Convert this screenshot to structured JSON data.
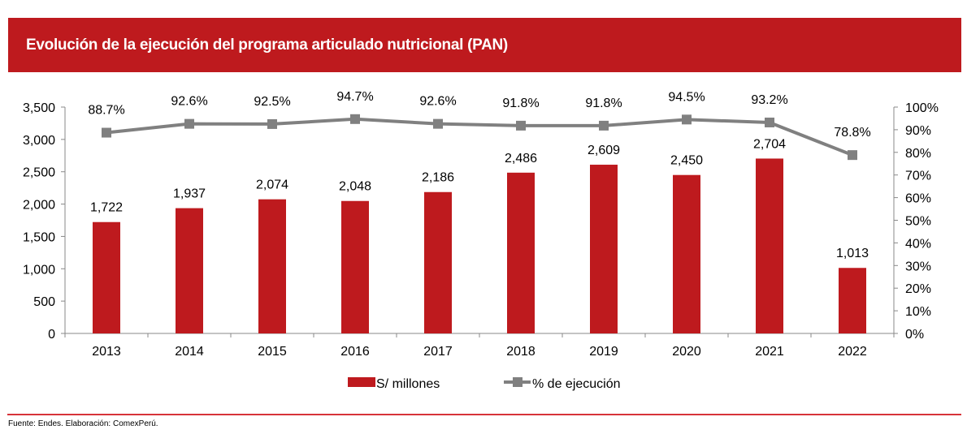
{
  "title": "Evolución de la ejecución del programa articulado nutricional (PAN)",
  "source": "Fuente: Endes. Elaboración: ComexPerú.",
  "colors": {
    "bar": "#be1a1e",
    "line": "#808080",
    "header": "#be1a1e"
  },
  "chart_data": {
    "type": "bar",
    "title": "Evolución de la ejecución del programa articulado nutricional (PAN)",
    "categories": [
      "2013",
      "2014",
      "2015",
      "2016",
      "2017",
      "2018",
      "2019",
      "2020",
      "2021",
      "2022"
    ],
    "series": [
      {
        "name": "S/ millones",
        "type": "bar",
        "axis": "left",
        "values": [
          1722,
          1937,
          2074,
          2048,
          2186,
          2486,
          2609,
          2450,
          2704,
          1013
        ],
        "labels": [
          "1,722",
          "1,937",
          "2,074",
          "2,048",
          "2,186",
          "2,486",
          "2,609",
          "2,450",
          "2,704",
          "1,013"
        ]
      },
      {
        "name": "% de ejecución",
        "type": "line",
        "axis": "right",
        "values": [
          88.7,
          92.6,
          92.5,
          94.7,
          92.6,
          91.8,
          91.8,
          94.5,
          93.2,
          78.8
        ],
        "labels": [
          "88.7%",
          "92.6%",
          "92.5%",
          "94.7%",
          "92.6%",
          "91.8%",
          "91.8%",
          "94.5%",
          "93.2%",
          "78.8%"
        ]
      }
    ],
    "y_left": {
      "range": [
        0,
        3500
      ],
      "ticks": [
        "0",
        "500",
        "1,000",
        "1,500",
        "2,000",
        "2,500",
        "3,000",
        "3,500"
      ]
    },
    "y_right": {
      "range": [
        0,
        100
      ],
      "ticks": [
        "0%",
        "10%",
        "20%",
        "30%",
        "40%",
        "50%",
        "60%",
        "70%",
        "80%",
        "90%",
        "100%"
      ]
    },
    "legend": {
      "position": "bottom",
      "items": [
        "S/ millones",
        "% de ejecución"
      ]
    },
    "grid": false
  }
}
